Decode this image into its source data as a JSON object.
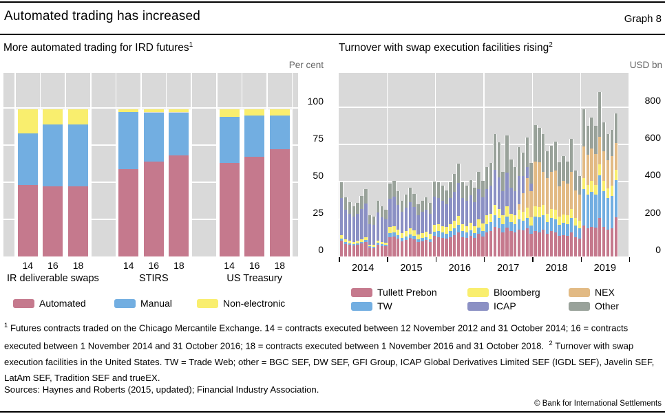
{
  "header": {
    "title": "Automated trading has increased",
    "graph_label": "Graph 8"
  },
  "left_panel": {
    "subtitle": "More automated trading for IRD futures",
    "subtitle_sup": "1",
    "unit": "Per cent"
  },
  "right_panel": {
    "subtitle": "Turnover with swap execution facilities rising",
    "subtitle_sup": "2",
    "unit": "USD bn"
  },
  "colors": {
    "plot_background": "#d9d9d9",
    "gridline": "#ffffff",
    "rule": "#000000",
    "unit_label": "#636363",
    "text": "#000000"
  },
  "chart_data": [
    {
      "type": "bar",
      "stacked": true,
      "title": "More automated trading for IRD futures",
      "ylabel": "Per cent",
      "ylim": [
        0,
        100
      ],
      "yticks": [
        0,
        25,
        50,
        75,
        100
      ],
      "grid": true,
      "legend_position": "below",
      "groups": [
        "IR deliverable swaps",
        "STIRS",
        "US Treasury"
      ],
      "categories": [
        "14",
        "16",
        "18"
      ],
      "series": [
        {
          "name": "Automated",
          "color": "#c5798d",
          "values": [
            [
              48,
              47,
              47
            ],
            [
              59,
              64,
              68
            ],
            [
              63,
              67,
              72
            ]
          ]
        },
        {
          "name": "Manual",
          "color": "#72aee1",
          "values": [
            [
              35,
              42,
              42
            ],
            [
              38,
              33,
              29
            ],
            [
              31,
              28,
              23
            ]
          ]
        },
        {
          "name": "Non-electronic",
          "color": "#f9ee6e",
          "values": [
            [
              16,
              10,
              10
            ],
            [
              2,
              2,
              2
            ],
            [
              5,
              4,
              4
            ]
          ]
        }
      ]
    },
    {
      "type": "bar",
      "stacked": true,
      "title": "Turnover with swap execution facilities rising",
      "ylabel": "USD bn",
      "ylim": [
        0,
        800
      ],
      "yticks": [
        0,
        200,
        400,
        600,
        800
      ],
      "grid": true,
      "legend_position": "below",
      "x_unit": "month",
      "x_year_labels": [
        "2014",
        "2015",
        "2016",
        "2017",
        "2018",
        "2019"
      ],
      "months_per_year": 12,
      "n_months": 69,
      "series": [
        {
          "name": "Tullett Prebon",
          "color": "#c5798d",
          "values": [
            85,
            68,
            62,
            58,
            61,
            69,
            77,
            47,
            46,
            64,
            57,
            54,
            105,
            108,
            95,
            82,
            90,
            100,
            92,
            77,
            82,
            87,
            79,
            110,
            105,
            100,
            95,
            105,
            115,
            130,
            105,
            100,
            110,
            98,
            120,
            108,
            130,
            135,
            160,
            150,
            130,
            155,
            135,
            130,
            145,
            140,
            150,
            120,
            135,
            130,
            145,
            120,
            135,
            130,
            110,
            115,
            110,
            130,
            105,
            95,
            165,
            150,
            160,
            155,
            205,
            160,
            145,
            150,
            210
          ]
        },
        {
          "name": "TW",
          "color": "#72aee1",
          "values": [
            12,
            10,
            9,
            8,
            9,
            10,
            11,
            7,
            7,
            9,
            8,
            8,
            20,
            20,
            18,
            16,
            17,
            19,
            18,
            15,
            16,
            17,
            15,
            21,
            30,
            28,
            28,
            30,
            35,
            40,
            30,
            28,
            32,
            28,
            36,
            30,
            45,
            50,
            60,
            55,
            45,
            60,
            50,
            45,
            55,
            50,
            55,
            45,
            80,
            80,
            75,
            65,
            70,
            70,
            60,
            65,
            65,
            75,
            60,
            55,
            195,
            180,
            185,
            175,
            230,
            190,
            170,
            175,
            200
          ]
        },
        {
          "name": "Bloomberg",
          "color": "#f9ee6e",
          "values": [
            18,
            14,
            13,
            12,
            13,
            14,
            16,
            10,
            9,
            13,
            12,
            11,
            35,
            36,
            32,
            28,
            30,
            34,
            31,
            26,
            28,
            29,
            27,
            37,
            38,
            36,
            34,
            38,
            42,
            48,
            38,
            36,
            40,
            35,
            44,
            38,
            45,
            45,
            55,
            50,
            45,
            55,
            45,
            45,
            50,
            50,
            55,
            45,
            55,
            55,
            55,
            45,
            50,
            50,
            45,
            45,
            45,
            50,
            40,
            40,
            60,
            55,
            60,
            55,
            60,
            55,
            50,
            55,
            55
          ]
        },
        {
          "name": "NEX",
          "color": "#e2ba84",
          "values": [
            0,
            0,
            0,
            0,
            0,
            0,
            0,
            0,
            0,
            0,
            0,
            0,
            0,
            0,
            0,
            0,
            0,
            0,
            0,
            0,
            0,
            0,
            0,
            0,
            0,
            0,
            0,
            0,
            0,
            0,
            0,
            0,
            0,
            0,
            0,
            0,
            0,
            0,
            0,
            0,
            0,
            0,
            0,
            0,
            30,
            100,
            160,
            140,
            240,
            240,
            180,
            190,
            200,
            210,
            160,
            180,
            170,
            200,
            150,
            140,
            170,
            160,
            175,
            165,
            145,
            160,
            150,
            160,
            145
          ]
        },
        {
          "name": "ICAP",
          "color": "#8b90c4",
          "values": [
            200,
            159,
            145,
            135,
            144,
            162,
            180,
            110,
            107,
            150,
            134,
            125,
            150,
            155,
            130,
            112,
            123,
            138,
            126,
            105,
            112,
            119,
            108,
            151,
            140,
            135,
            125,
            140,
            155,
            175,
            140,
            135,
            145,
            130,
            160,
            142,
            140,
            150,
            190,
            170,
            130,
            180,
            140,
            130,
            150,
            90,
            60,
            40,
            0,
            0,
            0,
            0,
            0,
            0,
            0,
            0,
            0,
            0,
            0,
            0,
            0,
            0,
            0,
            0,
            0,
            0,
            0,
            0,
            0
          ]
        },
        {
          "name": "Other",
          "color": "#99a29a",
          "values": [
            85,
            67,
            61,
            57,
            61,
            69,
            77,
            46,
            45,
            64,
            58,
            53,
            82,
            85,
            74,
            62,
            70,
            76,
            70,
            58,
            62,
            66,
            59,
            83,
            85,
            81,
            73,
            85,
            94,
            103,
            85,
            81,
            83,
            76,
            93,
            86,
            118,
            122,
            191,
            188,
            105,
            198,
            150,
            130,
            155,
            125,
            158,
            110,
            195,
            185,
            200,
            145,
            140,
            155,
            130,
            135,
            120,
            175,
            105,
            100,
            200,
            155,
            165,
            150,
            240,
            155,
            140,
            140,
            155
          ]
        }
      ]
    }
  ],
  "legend_left_order": [
    0,
    1,
    2
  ],
  "legend_right_rows": [
    [
      0,
      2,
      3
    ],
    [
      1,
      4,
      5
    ]
  ],
  "footnotes": {
    "fn1": {
      "marker": "1",
      "text": "Futures contracts traded on the Chicago Mercantile Exchange. 14 = contracts executed between 12 November 2012 and 31 October 2014; 16 = contracts executed between 1 November 2014 and 31 October 2016; 18 = contracts executed between 1 November 2016 and 31 October 2018."
    },
    "fn2": {
      "marker": "2",
      "text": "Turnover with swap execution facilities in the United States. TW = Trade Web; other = BGC SEF, DW SEF, GFI Group, ICAP Global Derivatives Limited SEF (IGDL SEF), Javelin SEF, LatAm SEF, Tradition SEF and trueEX."
    }
  },
  "sources": "Sources: Haynes and Roberts (2015, updated); Financial Industry Association.",
  "copyright": "© Bank for International Settlements"
}
